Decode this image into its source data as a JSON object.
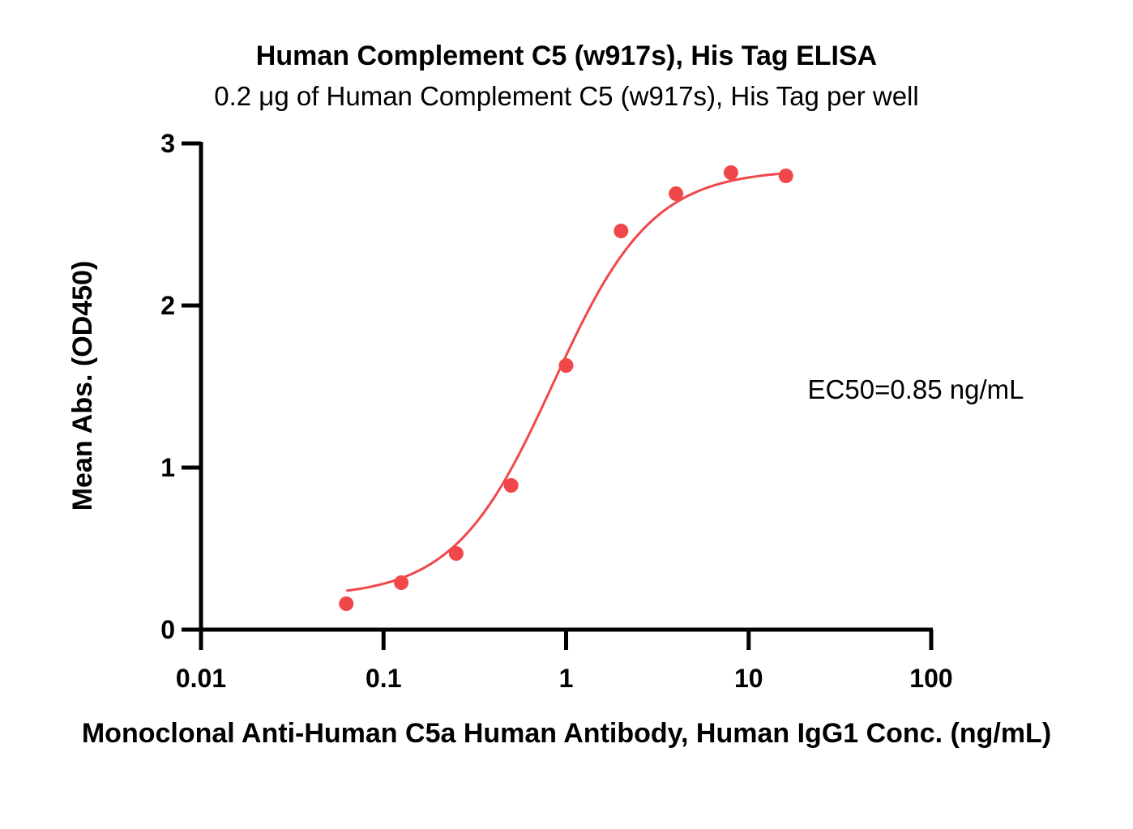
{
  "chart_data": {
    "type": "scatter",
    "title": "Human Complement C5 (w917s), His Tag ELISA",
    "subtitle": "0.2 μg of Human Complement C5 (w917s), His Tag per well",
    "xlabel": "Monoclonal Anti-Human C5a Human Antibody, Human IgG1 Conc. (ng/mL)",
    "ylabel": "Mean Abs. (OD450)",
    "xscale": "log",
    "xlim": [
      0.01,
      100
    ],
    "ylim": [
      0,
      3
    ],
    "x_ticks": [
      0.01,
      0.1,
      1,
      10,
      100
    ],
    "x_tick_labels": [
      "0.01",
      "0.1",
      "1",
      "10",
      "100"
    ],
    "y_ticks": [
      0,
      1,
      2,
      3
    ],
    "y_tick_labels": [
      "0",
      "1",
      "2",
      "3"
    ],
    "grid": false,
    "color": "#f0484a",
    "series": [
      {
        "x": [
          0.0625,
          0.125,
          0.25,
          0.5,
          1,
          2,
          4,
          8,
          16
        ],
        "y": [
          0.16,
          0.29,
          0.47,
          0.89,
          1.63,
          2.46,
          2.69,
          2.82,
          2.8
        ]
      }
    ],
    "fit": {
      "type": "4PL",
      "bottom": 0.2,
      "top": 2.84,
      "ec50": 0.85,
      "hill": 1.6,
      "x_range": [
        0.0625,
        16
      ]
    },
    "annotations": [
      "EC50=0.85 ng/mL"
    ]
  }
}
